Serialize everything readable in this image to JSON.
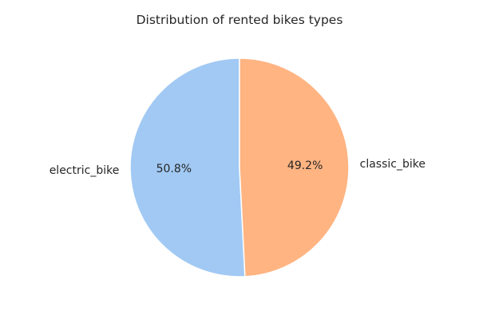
{
  "chart_data": {
    "type": "pie",
    "title": "Distribution of rented bikes types",
    "labels": [
      "electric_bike",
      "classic_bike"
    ],
    "values": [
      50.8,
      49.2
    ],
    "percent_labels": [
      "50.8%",
      "49.2%"
    ],
    "colors": [
      "#a1c9f4",
      "#ffb482"
    ],
    "start_angle_deg": 90,
    "direction": "counterclockwise",
    "legend": "none"
  }
}
